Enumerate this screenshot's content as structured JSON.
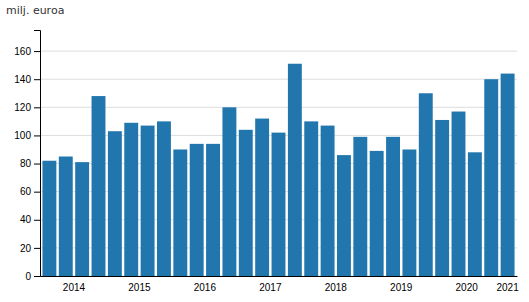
{
  "chart_data": {
    "type": "bar",
    "ylabel": "milj. euroa",
    "categories": [
      null,
      "2014",
      null,
      null,
      null,
      "2015",
      null,
      null,
      null,
      "2016",
      null,
      null,
      null,
      "2017",
      null,
      null,
      null,
      "2018",
      null,
      null,
      null,
      "2019",
      null,
      null,
      null,
      "2020",
      null,
      null,
      "2021"
    ],
    "values": [
      82,
      85,
      81,
      128,
      103,
      109,
      107,
      110,
      90,
      94,
      94,
      120,
      104,
      112,
      102,
      151,
      110,
      107,
      86,
      99,
      89,
      99,
      90,
      130,
      111,
      117,
      88,
      140,
      144
    ],
    "color": "#2176ae",
    "ylim": [
      0,
      175
    ],
    "yticks": [
      0,
      20,
      40,
      60,
      80,
      100,
      120,
      140,
      160
    ],
    "grid": true
  }
}
